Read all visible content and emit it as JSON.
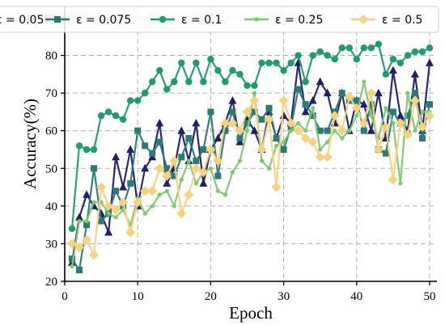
{
  "chart_data": {
    "type": "line",
    "title": "",
    "xlabel": "Epoch",
    "ylabel": "Accuracy(%)",
    "xlim": [
      0,
      51
    ],
    "ylim": [
      20,
      93
    ],
    "xticks": [
      0,
      10,
      20,
      30,
      40,
      50
    ],
    "yticks": [
      20,
      30,
      40,
      50,
      60,
      70,
      80,
      90
    ],
    "grid": true,
    "legend_position": "top",
    "x": [
      1,
      2,
      3,
      4,
      5,
      6,
      7,
      8,
      9,
      10,
      11,
      12,
      13,
      14,
      15,
      16,
      17,
      18,
      19,
      20,
      21,
      22,
      23,
      24,
      25,
      26,
      27,
      28,
      29,
      30,
      31,
      32,
      33,
      34,
      35,
      36,
      37,
      38,
      39,
      40,
      41,
      42,
      43,
      44,
      45,
      46,
      47,
      48,
      49,
      50
    ],
    "series": [
      {
        "name": "ε = 0.05",
        "color": "#1f1f6b",
        "marker": "triangle",
        "values": [
          25,
          37,
          43,
          40,
          38,
          33,
          53,
          45,
          55,
          40,
          50,
          53,
          62,
          46,
          50,
          60,
          52,
          62,
          46,
          55,
          58,
          62,
          68,
          57,
          63,
          60,
          55,
          65,
          58,
          64,
          62,
          78,
          65,
          68,
          73,
          70,
          62,
          70,
          60,
          68,
          67,
          60,
          70,
          58,
          76,
          64,
          60,
          75,
          60,
          78
        ]
      },
      {
        "name": "ε = 0.075",
        "color": "#2a7a76",
        "marker": "square",
        "values": [
          26,
          23,
          35,
          50,
          36,
          38,
          44,
          40,
          46,
          60,
          56,
          54,
          57,
          50,
          48,
          53,
          58,
          52,
          55,
          65,
          48,
          60,
          65,
          58,
          62,
          65,
          63,
          66,
          58,
          55,
          61,
          71,
          67,
          64,
          60,
          60,
          65,
          70,
          68,
          68,
          60,
          67,
          55,
          54,
          65,
          62,
          64,
          70,
          58,
          67
        ]
      },
      {
        "name": "ε = 0.1",
        "color": "#1e9c6e",
        "marker": "circle",
        "values": [
          34,
          56,
          55,
          55,
          64,
          65,
          64,
          63,
          68,
          68,
          70,
          73,
          76,
          71,
          73,
          78,
          73,
          78,
          73,
          79,
          76,
          73,
          76,
          75,
          72,
          72,
          78,
          78,
          78,
          76,
          78,
          80,
          73,
          80,
          81,
          80,
          79,
          82,
          82,
          79,
          82,
          82,
          83,
          75,
          79,
          78,
          80,
          81,
          81,
          82
        ]
      },
      {
        "name": "ε = 0.25",
        "color": "#7cc96e",
        "marker": "dot",
        "values": [
          24,
          36,
          36,
          41,
          41,
          38,
          37,
          39,
          35,
          42,
          38,
          40,
          43,
          44,
          40,
          47,
          52,
          46,
          49,
          50,
          44,
          43,
          49,
          52,
          60,
          70,
          52,
          50,
          56,
          57,
          60,
          62,
          60,
          66,
          55,
          57,
          60,
          58,
          60,
          64,
          73,
          64,
          58,
          66,
          62,
          46,
          70,
          60,
          65,
          65
        ]
      },
      {
        "name": "ε = 0.5",
        "color": "#f7d27e",
        "marker": "diamond",
        "values": [
          30,
          29,
          31,
          27,
          45,
          40,
          39,
          41,
          33,
          41,
          44,
          44,
          50,
          48,
          52,
          38,
          43,
          50,
          49,
          55,
          52,
          62,
          62,
          60,
          65,
          68,
          55,
          63,
          45,
          68,
          62,
          60,
          58,
          57,
          53,
          53,
          64,
          60,
          69,
          66,
          62,
          70,
          55,
          61,
          47,
          62,
          59,
          68,
          61,
          64
        ]
      }
    ]
  }
}
